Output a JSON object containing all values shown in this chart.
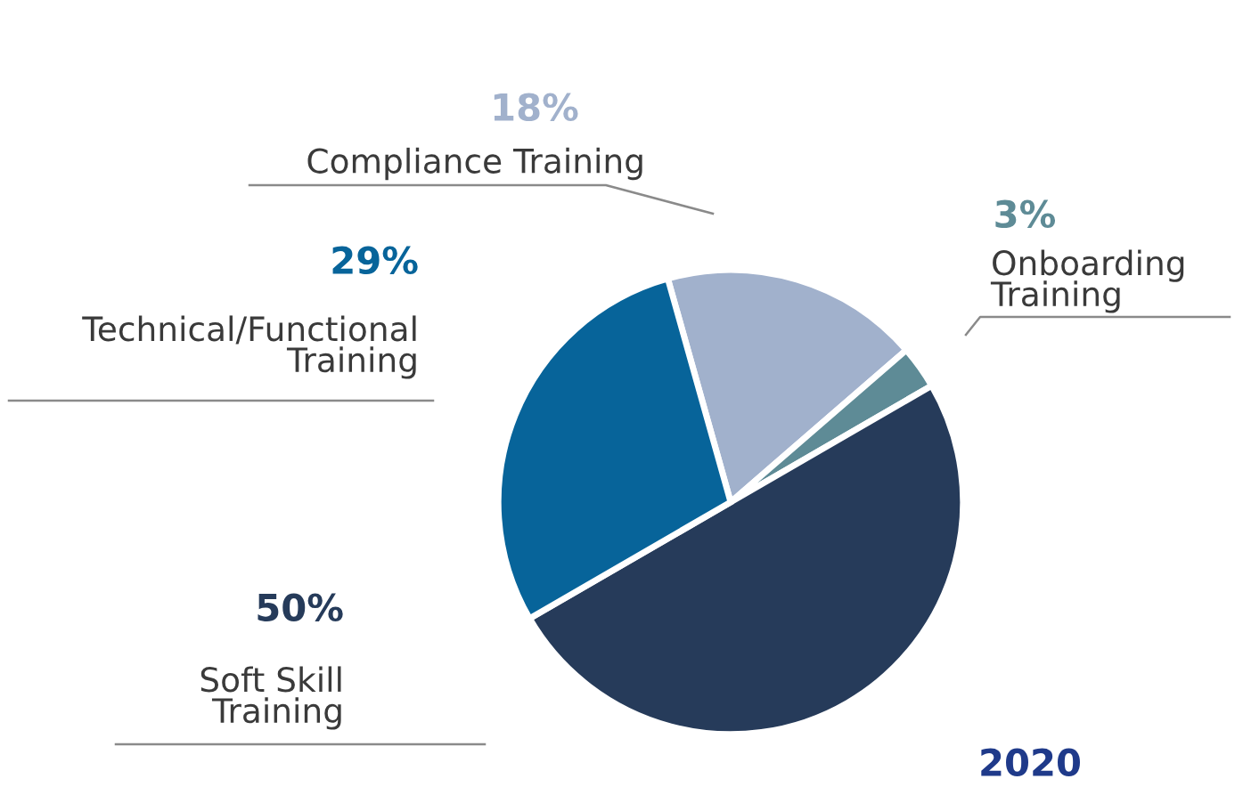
{
  "chart_data": {
    "type": "pie",
    "categories": [
      "Compliance Training",
      "Onboarding\nTraining",
      "Soft Skill\nTraining",
      "Technical/Functional\nTraining"
    ],
    "values": [
      18,
      3,
      50,
      29
    ],
    "value_labels": [
      "18%",
      "3%",
      "50%",
      "29%"
    ],
    "colors": [
      "#a1b1cc",
      "#5e8b96",
      "#263b5a",
      "#07649a"
    ],
    "annotations": [
      "2020"
    ]
  }
}
